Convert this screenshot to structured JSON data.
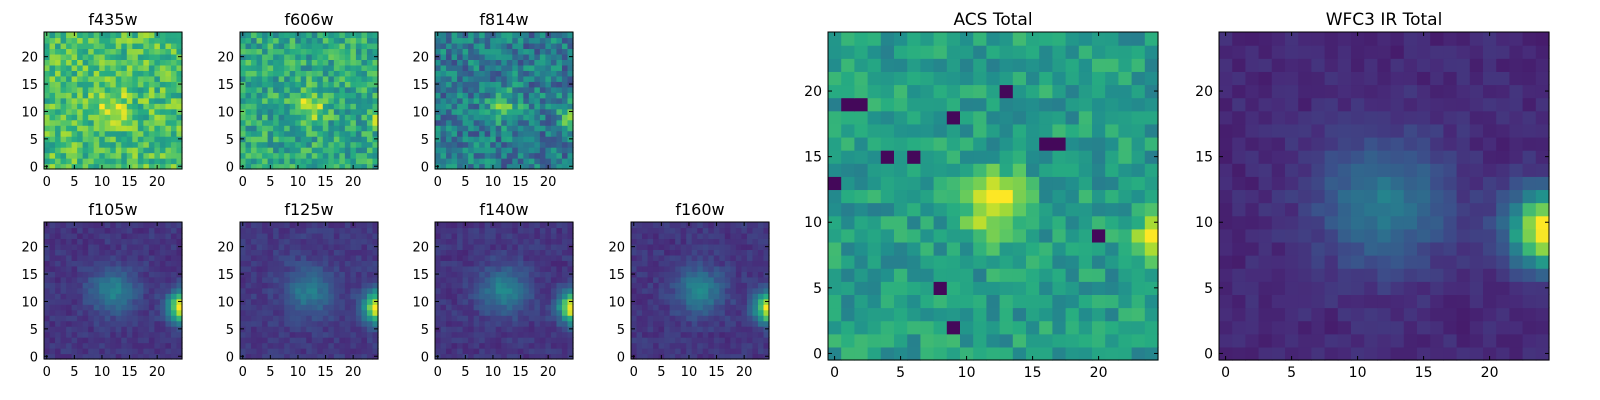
{
  "chart_data": [
    {
      "type": "heatmap",
      "title": "f435w",
      "colormap": "viridis",
      "grid_size": 25,
      "xlim": [
        -0.5,
        24.5
      ],
      "ylim": [
        -0.5,
        24.5
      ],
      "xticks": [
        0,
        5,
        10,
        15,
        20
      ],
      "yticks": [
        0,
        5,
        10,
        15,
        20
      ],
      "tick_labels": [
        "0",
        "5",
        "10",
        "15",
        "20"
      ],
      "vmin": 0,
      "vmax": 1,
      "features": {
        "base": 0.7,
        "noise": 0.18,
        "center_blob": {
          "x": 12,
          "y": 11,
          "sigma": 2.2,
          "amp": 0.22
        },
        "edge_source": {
          "x": 25,
          "y": 9,
          "sigma": 1.5,
          "amp": 0.0
        },
        "dark_pixels": []
      }
    },
    {
      "type": "heatmap",
      "title": "f606w",
      "colormap": "viridis",
      "grid_size": 25,
      "xlim": [
        -0.5,
        24.5
      ],
      "ylim": [
        -0.5,
        24.5
      ],
      "xticks": [
        0,
        5,
        10,
        15,
        20
      ],
      "yticks": [
        0,
        5,
        10,
        15,
        20
      ],
      "tick_labels": [
        "0",
        "5",
        "10",
        "15",
        "20"
      ],
      "vmin": 0,
      "vmax": 1,
      "features": {
        "base": 0.6,
        "noise": 0.18,
        "center_blob": {
          "x": 12,
          "y": 11,
          "sigma": 2.0,
          "amp": 0.32
        },
        "edge_source": {
          "x": 25,
          "y": 9,
          "sigma": 1.4,
          "amp": 0.35
        },
        "dark_pixels": []
      }
    },
    {
      "type": "heatmap",
      "title": "f814w",
      "colormap": "viridis",
      "grid_size": 25,
      "xlim": [
        -0.5,
        24.5
      ],
      "ylim": [
        -0.5,
        24.5
      ],
      "xticks": [
        0,
        5,
        10,
        15,
        20
      ],
      "yticks": [
        0,
        5,
        10,
        15,
        20
      ],
      "tick_labels": [
        "0",
        "5",
        "10",
        "15",
        "20"
      ],
      "vmin": 0,
      "vmax": 1,
      "features": {
        "base": 0.42,
        "noise": 0.2,
        "center_blob": {
          "x": 12,
          "y": 11,
          "sigma": 2.0,
          "amp": 0.3
        },
        "edge_source": {
          "x": 25,
          "y": 9,
          "sigma": 1.6,
          "amp": 0.6
        },
        "dark_pixels": []
      }
    },
    {
      "type": "heatmap",
      "title": "f105w",
      "colormap": "viridis",
      "grid_size": 25,
      "xlim": [
        -0.5,
        24.5
      ],
      "ylim": [
        -0.5,
        24.5
      ],
      "xticks": [
        0,
        5,
        10,
        15,
        20
      ],
      "yticks": [
        0,
        5,
        10,
        15,
        20
      ],
      "tick_labels": [
        "0",
        "5",
        "10",
        "15",
        "20"
      ],
      "vmin": 0,
      "vmax": 1,
      "features": {
        "base": 0.16,
        "noise": 0.05,
        "center_blob": {
          "x": 12,
          "y": 12,
          "sigma": 3.0,
          "amp": 0.28
        },
        "edge_source": {
          "x": 25,
          "y": 9,
          "sigma": 2.0,
          "amp": 0.95
        },
        "dark_pixels": []
      }
    },
    {
      "type": "heatmap",
      "title": "f125w",
      "colormap": "viridis",
      "grid_size": 25,
      "xlim": [
        -0.5,
        24.5
      ],
      "ylim": [
        -0.5,
        24.5
      ],
      "xticks": [
        0,
        5,
        10,
        15,
        20
      ],
      "yticks": [
        0,
        5,
        10,
        15,
        20
      ],
      "tick_labels": [
        "0",
        "5",
        "10",
        "15",
        "20"
      ],
      "vmin": 0,
      "vmax": 1,
      "features": {
        "base": 0.17,
        "noise": 0.05,
        "center_blob": {
          "x": 12,
          "y": 12,
          "sigma": 3.0,
          "amp": 0.26
        },
        "edge_source": {
          "x": 25,
          "y": 9,
          "sigma": 2.0,
          "amp": 0.95
        },
        "dark_pixels": []
      }
    },
    {
      "type": "heatmap",
      "title": "f140w",
      "colormap": "viridis",
      "grid_size": 25,
      "xlim": [
        -0.5,
        24.5
      ],
      "ylim": [
        -0.5,
        24.5
      ],
      "xticks": [
        0,
        5,
        10,
        15,
        20
      ],
      "yticks": [
        0,
        5,
        10,
        15,
        20
      ],
      "tick_labels": [
        "0",
        "5",
        "10",
        "15",
        "20"
      ],
      "vmin": 0,
      "vmax": 1,
      "features": {
        "base": 0.16,
        "noise": 0.05,
        "center_blob": {
          "x": 12,
          "y": 12,
          "sigma": 3.0,
          "amp": 0.3
        },
        "edge_source": {
          "x": 25,
          "y": 9,
          "sigma": 2.0,
          "amp": 0.95
        },
        "dark_pixels": []
      }
    },
    {
      "type": "heatmap",
      "title": "f160w",
      "colormap": "viridis",
      "grid_size": 25,
      "xlim": [
        -0.5,
        24.5
      ],
      "ylim": [
        -0.5,
        24.5
      ],
      "xticks": [
        0,
        5,
        10,
        15,
        20
      ],
      "yticks": [
        0,
        5,
        10,
        15,
        20
      ],
      "tick_labels": [
        "0",
        "5",
        "10",
        "15",
        "20"
      ],
      "vmin": 0,
      "vmax": 1,
      "features": {
        "base": 0.16,
        "noise": 0.05,
        "center_blob": {
          "x": 12,
          "y": 12,
          "sigma": 3.0,
          "amp": 0.3
        },
        "edge_source": {
          "x": 25,
          "y": 9,
          "sigma": 2.0,
          "amp": 0.95
        },
        "dark_pixels": []
      }
    },
    {
      "type": "heatmap",
      "title": "ACS Total",
      "colormap": "viridis",
      "grid_size": 25,
      "xlim": [
        -0.5,
        24.5
      ],
      "ylim": [
        -0.5,
        24.5
      ],
      "xticks": [
        0,
        5,
        10,
        15,
        20
      ],
      "yticks": [
        0,
        5,
        10,
        15,
        20
      ],
      "tick_labels": [
        "0",
        "5",
        "10",
        "15",
        "20"
      ],
      "vmin": 0,
      "vmax": 1,
      "features": {
        "base": 0.56,
        "noise": 0.13,
        "center_blob": {
          "x": 12,
          "y": 11.5,
          "sigma": 1.6,
          "amp": 0.5
        },
        "edge_source": {
          "x": 24.5,
          "y": 9,
          "sigma": 1.3,
          "amp": 0.5
        },
        "dark_pixels": [
          [
            1,
            19
          ],
          [
            2,
            19
          ],
          [
            4,
            15
          ],
          [
            6,
            15
          ],
          [
            0,
            13
          ],
          [
            9,
            18
          ],
          [
            13,
            20
          ],
          [
            16,
            16
          ],
          [
            17,
            16
          ],
          [
            20,
            9
          ],
          [
            8,
            5
          ],
          [
            9,
            2
          ]
        ]
      }
    },
    {
      "type": "heatmap",
      "title": "WFC3 IR Total",
      "colormap": "viridis",
      "grid_size": 25,
      "xlim": [
        -0.5,
        24.5
      ],
      "ylim": [
        -0.5,
        24.5
      ],
      "xticks": [
        0,
        5,
        10,
        15,
        20
      ],
      "yticks": [
        0,
        5,
        10,
        15,
        20
      ],
      "tick_labels": [
        "0",
        "5",
        "10",
        "15",
        "20"
      ],
      "vmin": 0,
      "vmax": 1,
      "features": {
        "base": 0.12,
        "noise": 0.04,
        "center_blob": {
          "x": 12,
          "y": 11.5,
          "sigma": 3.5,
          "amp": 0.3
        },
        "edge_source": {
          "x": 24.5,
          "y": 9.5,
          "sigma": 2.0,
          "amp": 0.95
        },
        "dark_pixels": []
      }
    }
  ]
}
